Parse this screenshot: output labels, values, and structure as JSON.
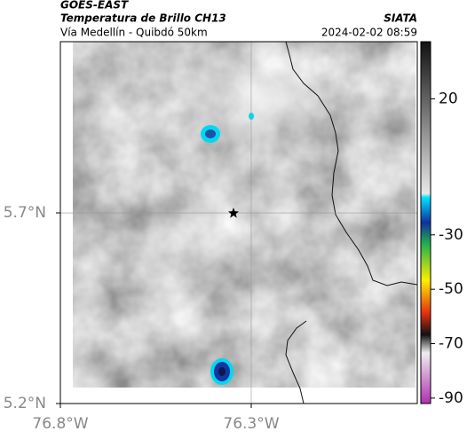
{
  "header": {
    "title": "GOES-EAST",
    "subtitle": "Temperatura de Brillo CH13",
    "location": "Vía Medellín - Quibdó 50km",
    "source": "SIATA",
    "timestamp": "2024-02-02 08:59"
  },
  "map": {
    "xlim": [
      -76.8,
      -75.865
    ],
    "ylim": [
      5.2,
      6.149
    ],
    "xticks": [
      {
        "value": -76.8,
        "label": "76.8°W"
      },
      {
        "value": -76.3,
        "label": "76.3°W"
      }
    ],
    "yticks": [
      {
        "value": 5.7,
        "label": "5.7°N"
      },
      {
        "value": 5.2,
        "label": "5.2°N"
      }
    ],
    "grid": true
  },
  "colorbar": {
    "lim": [
      -92,
      41
    ],
    "ticks": [
      20,
      -30,
      -50,
      -70,
      -90
    ]
  }
}
